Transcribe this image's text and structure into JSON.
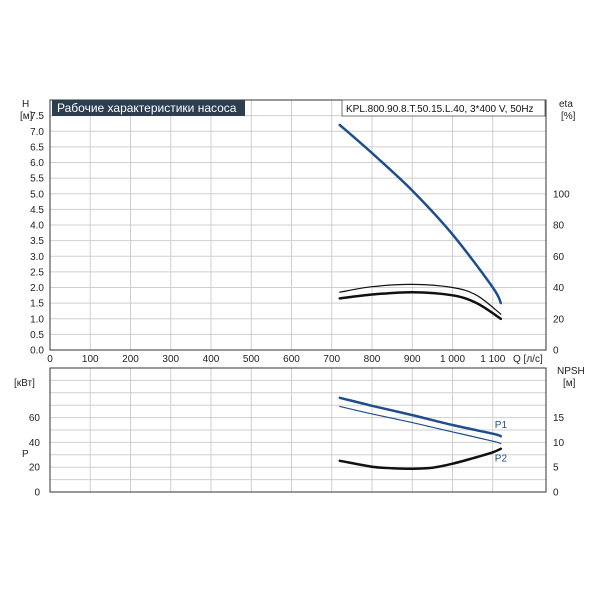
{
  "chart_data": [
    {
      "type": "line",
      "title": "Рабочие характеристики насоса",
      "model": "KPL.800.90.8.T.50.15.L.40, 3*400 V, 50Hz",
      "ylabel_left": "H",
      "ylabel_left_unit": "[м]",
      "ylabel_right": "eta",
      "ylabel_right_unit": "[%]",
      "xlabel": "Q [л/с]",
      "xlim": [
        0,
        1200
      ],
      "ylim_left": [
        0,
        8
      ],
      "ylim_right": [
        0,
        160
      ],
      "x_ticks": [
        "0",
        "100",
        "200",
        "300",
        "400",
        "500",
        "600",
        "700",
        "800",
        "900",
        "1 000",
        "1 100"
      ],
      "y_left_ticks": [
        "0.0",
        "0.5",
        "1.0",
        "1.5",
        "2.0",
        "2.5",
        "3.0",
        "3.5",
        "4.0",
        "4.5",
        "5.0",
        "5.5",
        "6.0",
        "6.5",
        "7.0",
        "7.5"
      ],
      "y_right_ticks": [
        "0",
        "20",
        "40",
        "60",
        "80",
        "100"
      ],
      "grid": true,
      "series": [
        {
          "axis": "left",
          "color": "#1f4e8c",
          "width": 2.5,
          "x": [
            720,
            800,
            900,
            1000,
            1100,
            1120
          ],
          "values": [
            7.2,
            6.3,
            5.1,
            3.7,
            2.0,
            1.5
          ]
        },
        {
          "axis": "right",
          "color": "#111111",
          "width": 2.5,
          "x": [
            720,
            800,
            900,
            1000,
            1060,
            1120
          ],
          "values": [
            33,
            35.5,
            37,
            35,
            30,
            20
          ]
        },
        {
          "axis": "right",
          "color": "#111111",
          "width": 1.2,
          "x": [
            720,
            800,
            900,
            1000,
            1060,
            1120
          ],
          "values": [
            37,
            40.5,
            42,
            40,
            35,
            23
          ]
        }
      ]
    },
    {
      "type": "line",
      "ylabel_left": "P",
      "ylabel_left_unit": "[кВт]",
      "ylabel_right": "NPSH",
      "ylabel_right_unit": "[м]",
      "xlim": [
        0,
        1200
      ],
      "ylim_left": [
        0,
        100
      ],
      "ylim_right": [
        0,
        20
      ],
      "y_left_ticks": [
        "0",
        "20",
        "40",
        "60"
      ],
      "y_right_ticks": [
        "0",
        "5",
        "10",
        "15"
      ],
      "grid": true,
      "series": [
        {
          "name": "P1",
          "axis": "left",
          "color": "#1f4e8c",
          "width": 2.5,
          "x": [
            720,
            800,
            900,
            1000,
            1100,
            1120
          ],
          "values": [
            76,
            69.5,
            62,
            54,
            47,
            45
          ]
        },
        {
          "name": "P2",
          "axis": "left",
          "color": "#1f4e8c",
          "width": 1.2,
          "x": [
            720,
            800,
            900,
            1000,
            1100,
            1120
          ],
          "values": [
            69,
            63,
            56,
            48.5,
            41,
            39
          ]
        },
        {
          "axis": "right",
          "color": "#111111",
          "width": 2.5,
          "x": [
            720,
            800,
            850,
            900,
            950,
            1000,
            1050,
            1100,
            1120
          ],
          "values": [
            6.3,
            5.1,
            4.8,
            4.7,
            4.9,
            5.7,
            6.8,
            8.0,
            8.7
          ]
        }
      ]
    }
  ]
}
